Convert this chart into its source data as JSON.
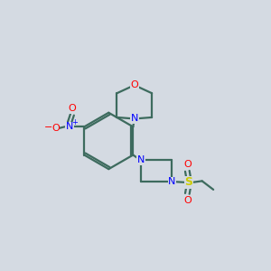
{
  "bg_color": "#d4dae2",
  "bond_color": "#3d6b5e",
  "N_color": "#0000ff",
  "O_color": "#ff0000",
  "S_color": "#cccc00",
  "line_width": 1.6,
  "fig_size": [
    3.0,
    3.0
  ],
  "dpi": 100,
  "xlim": [
    0,
    10
  ],
  "ylim": [
    0,
    10
  ]
}
